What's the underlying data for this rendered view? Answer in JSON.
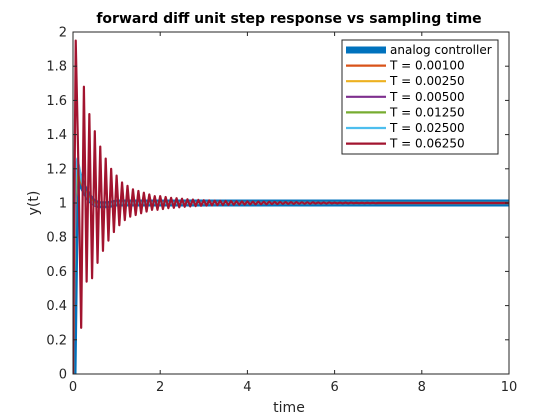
{
  "chart_data": {
    "type": "line",
    "title": "forward diff unit step response vs sampling time",
    "xlabel": "time",
    "ylabel": "y(t)",
    "xlim": [
      0,
      10
    ],
    "ylim": [
      0,
      2
    ],
    "xticks": [
      0,
      2,
      4,
      6,
      8,
      10
    ],
    "yticks": [
      0,
      0.2,
      0.4,
      0.6,
      0.8,
      1,
      1.2,
      1.4,
      1.6,
      1.8,
      2
    ],
    "xtick_labels": [
      "0",
      "2",
      "4",
      "6",
      "8",
      "10"
    ],
    "ytick_labels": [
      "0",
      "0.2",
      "0.4",
      "0.6",
      "0.8",
      "1",
      "1.2",
      "1.4",
      "1.6",
      "1.8",
      "2"
    ],
    "grid": false,
    "legend_position": "top-right",
    "series": [
      {
        "name": "analog controller",
        "color": "#0072BD",
        "x": [
          0,
          0.05,
          0.1,
          0.15,
          0.2,
          0.3,
          0.4,
          0.5,
          0.6,
          0.8,
          1.0,
          1.5,
          2,
          3,
          5,
          10
        ],
        "y": [
          0,
          0.95,
          1.18,
          1.15,
          1.11,
          1.06,
          1.02,
          1.0,
          0.99,
          0.99,
          1.0,
          1.0,
          1.0,
          1.0,
          1.0,
          1.0
        ]
      },
      {
        "name": "T = 0.00100",
        "color": "#D95319",
        "x": [
          0,
          0.05,
          0.1,
          0.15,
          0.2,
          0.3,
          0.4,
          0.5,
          0.6,
          0.8,
          1.0,
          1.5,
          2,
          3,
          5,
          10
        ],
        "y": [
          0,
          0.95,
          1.19,
          1.15,
          1.11,
          1.06,
          1.02,
          1.0,
          0.99,
          0.99,
          1.0,
          1.0,
          1.0,
          1.0,
          1.0,
          1.0
        ]
      },
      {
        "name": "T = 0.00250",
        "color": "#EDB120",
        "x": [
          0,
          0.05,
          0.1,
          0.15,
          0.2,
          0.3,
          0.4,
          0.5,
          0.6,
          0.8,
          1.0,
          1.5,
          2,
          3,
          5,
          10
        ],
        "y": [
          0,
          0.96,
          1.19,
          1.16,
          1.12,
          1.06,
          1.02,
          1.0,
          0.99,
          0.99,
          1.0,
          1.0,
          1.0,
          1.0,
          1.0,
          1.0
        ]
      },
      {
        "name": "T = 0.00500",
        "color": "#7E2F8E",
        "x": [
          0,
          0.05,
          0.1,
          0.15,
          0.2,
          0.3,
          0.4,
          0.5,
          0.6,
          0.8,
          1.0,
          1.5,
          2,
          3,
          5,
          10
        ],
        "y": [
          0,
          0.97,
          1.2,
          1.16,
          1.12,
          1.06,
          1.02,
          1.0,
          0.99,
          0.99,
          1.0,
          1.0,
          1.0,
          1.0,
          1.0,
          1.0
        ]
      },
      {
        "name": "T = 0.01250",
        "color": "#77AC30",
        "x": [
          0,
          0.05,
          0.1,
          0.15,
          0.2,
          0.3,
          0.4,
          0.5,
          0.6,
          0.8,
          1.0,
          1.5,
          2,
          3,
          5,
          10
        ],
        "y": [
          0,
          1.0,
          1.22,
          1.17,
          1.12,
          1.06,
          1.02,
          1.0,
          0.99,
          0.99,
          1.0,
          1.0,
          1.0,
          1.0,
          1.0,
          1.0
        ]
      },
      {
        "name": "T = 0.02500",
        "color": "#4DBEEE",
        "x": [
          0,
          0.025,
          0.05,
          0.075,
          0.1,
          0.15,
          0.2,
          0.3,
          0.4,
          0.5,
          0.6,
          0.8,
          1.0,
          1.5,
          2,
          3,
          5,
          10
        ],
        "y": [
          0,
          0.62,
          1.05,
          1.23,
          1.26,
          1.2,
          1.13,
          1.05,
          1.01,
          0.99,
          0.99,
          0.99,
          1.0,
          1.0,
          1.0,
          1.0,
          1.0,
          1.0
        ]
      },
      {
        "name": "T = 0.06250",
        "color": "#A2142F",
        "x": [
          0,
          0.0625,
          0.125,
          0.1875,
          0.25,
          0.3125,
          0.375,
          0.4375,
          0.5,
          0.5625,
          0.625,
          0.6875,
          0.75,
          0.8125,
          0.875,
          0.9375,
          1.0,
          1.0625,
          1.125,
          1.1875,
          1.25,
          1.3125,
          1.375,
          1.4375,
          1.5,
          1.5625,
          1.625,
          1.6875,
          1.75,
          1.8125,
          1.875,
          1.9375,
          2.0,
          2.0625,
          2.125,
          2.1875,
          2.25,
          2.3125,
          2.375,
          2.4375,
          2.5,
          2.5625,
          2.625,
          2.6875,
          2.75,
          2.8125,
          2.875,
          2.9375,
          3.0,
          3.0625,
          3.125,
          3.1875,
          3.25,
          3.3125,
          3.375,
          3.4375,
          3.5,
          3.5625,
          3.625,
          3.6875,
          3.75,
          3.8125,
          3.875,
          3.9375,
          4.0,
          4.0625,
          4.125,
          4.1875,
          4.25,
          4.3125,
          4.375,
          4.4375,
          4.5,
          4.5625,
          4.625,
          4.6875,
          4.75,
          4.8125,
          4.875,
          4.9375,
          5.0,
          5.0625,
          5.125,
          5.1875,
          5.25,
          5.3125,
          5.375,
          5.4375,
          5.5,
          5.5625,
          5.625,
          5.6875,
          5.75,
          5.8125,
          5.875,
          5.9375,
          6.0,
          6.0625,
          6.125,
          6.1875,
          6.25,
          6.3125,
          6.375,
          6.4375,
          6.5,
          6.5625,
          6.625,
          6.6875,
          6.75,
          6.8125,
          6.875,
          6.9375,
          7.0,
          7.5,
          8,
          9,
          10
        ],
        "y": [
          0,
          1.95,
          1.2,
          0.27,
          1.68,
          0.54,
          1.52,
          0.56,
          1.42,
          0.65,
          1.33,
          0.72,
          1.26,
          0.78,
          1.2,
          0.83,
          1.16,
          0.87,
          1.12,
          0.9,
          1.1,
          0.92,
          1.08,
          0.93,
          1.07,
          0.94,
          1.06,
          0.95,
          1.05,
          0.96,
          1.04,
          0.96,
          1.04,
          0.965,
          1.035,
          0.97,
          1.03,
          0.972,
          1.028,
          0.975,
          1.025,
          0.978,
          1.022,
          0.98,
          1.02,
          0.982,
          1.018,
          0.984,
          1.016,
          0.985,
          1.015,
          0.986,
          1.014,
          0.987,
          1.013,
          0.988,
          1.012,
          0.989,
          1.011,
          0.99,
          1.01,
          0.991,
          1.009,
          0.991,
          1.009,
          0.992,
          1.008,
          0.992,
          1.008,
          0.993,
          1.007,
          0.993,
          1.007,
          0.994,
          1.006,
          0.994,
          1.006,
          0.995,
          1.005,
          0.995,
          1.005,
          0.995,
          1.005,
          0.996,
          1.004,
          0.996,
          1.004,
          0.996,
          1.004,
          0.997,
          1.003,
          0.997,
          1.003,
          0.997,
          1.003,
          0.998,
          1.002,
          0.998,
          1.002,
          0.998,
          1.002,
          0.998,
          1.002,
          0.999,
          1.001,
          0.999,
          1.001,
          0.999,
          1.001,
          0.999,
          1.001,
          0.999,
          1.0,
          1.0,
          1.0,
          1.0,
          1.0
        ]
      }
    ]
  }
}
